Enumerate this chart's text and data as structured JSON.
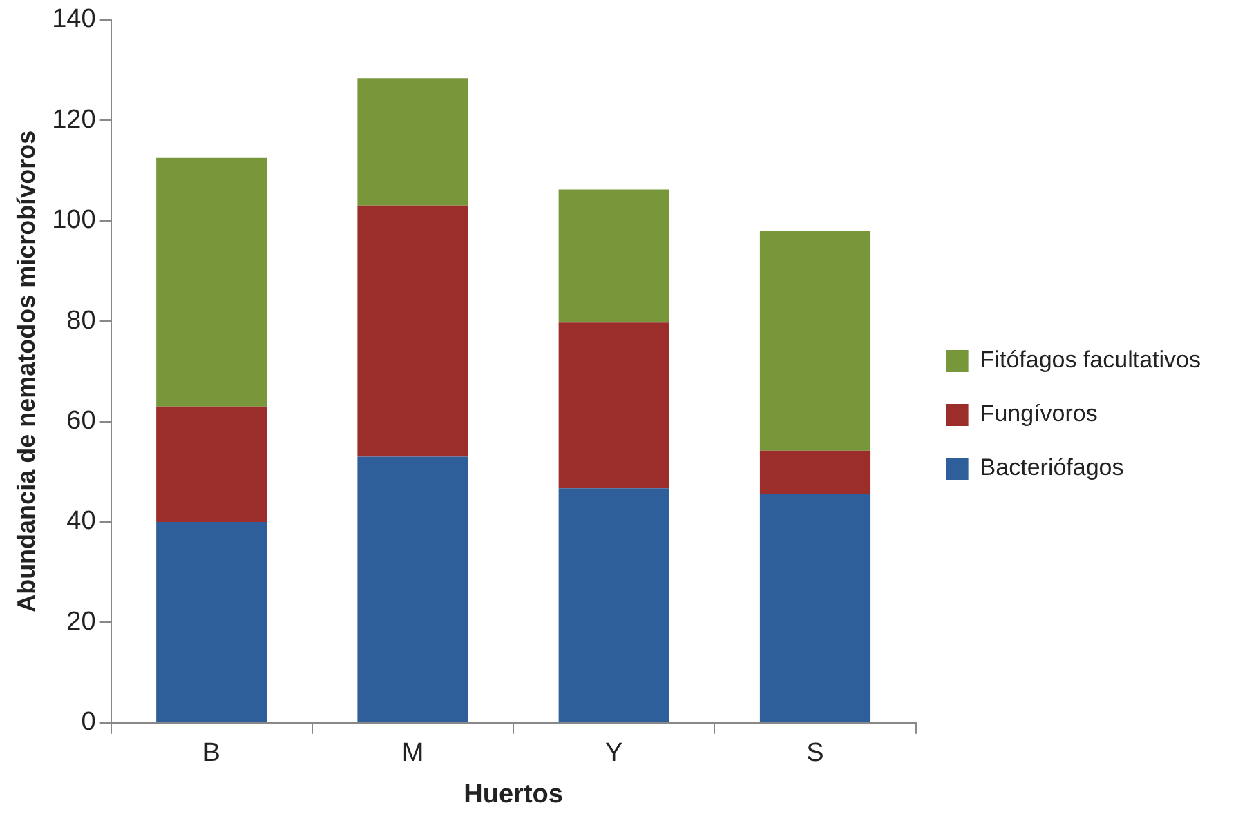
{
  "chart_data": {
    "type": "bar",
    "stacked": true,
    "xlabel": "Huertos",
    "ylabel": "Abundancia de nematodos microbívoros",
    "categories": [
      "B",
      "M",
      "Y",
      "S"
    ],
    "series": [
      {
        "name": "Bacteriófagos",
        "color": "#2e5f9a",
        "values": [
          40,
          53,
          46.7,
          45.5
        ]
      },
      {
        "name": "Fungívoros",
        "color": "#9b2d2a",
        "values": [
          23,
          50,
          33,
          8.7
        ]
      },
      {
        "name": "Fitófagos facultativos",
        "color": "#77973a",
        "values": [
          49.5,
          25.4,
          26.5,
          43.8
        ]
      }
    ],
    "ylim": [
      0,
      140
    ],
    "yticks": [
      0,
      20,
      40,
      60,
      80,
      100,
      120,
      140
    ],
    "grid": false,
    "legend": "right"
  }
}
